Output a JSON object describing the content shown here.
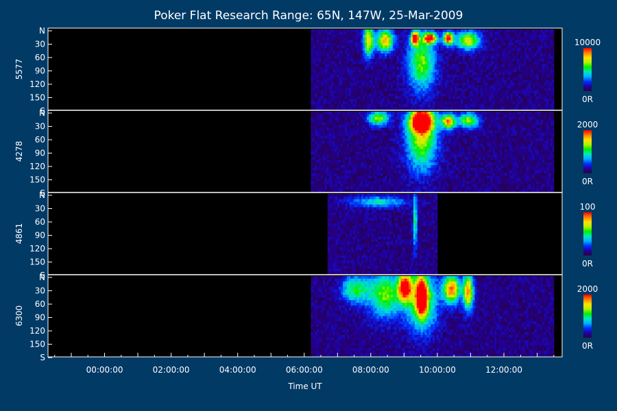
{
  "chart_data": {
    "type": "heatmap",
    "title": "Poker Flat Research Range: 65N, 147W, 25-Mar-2009",
    "xlabel": "Time UT",
    "x_tick_labels": [
      "00:00:00",
      "02:00:00",
      "04:00:00",
      "06:00:00",
      "08:00:00",
      "10:00:00",
      "12:00:00"
    ],
    "y_tick_labels": [
      "N",
      "30",
      "60",
      "90",
      "120",
      "150",
      "S"
    ],
    "colors": {
      "background": "#023a66",
      "plot": "#000000",
      "text": "#ffffff",
      "separator": "#ffffff"
    },
    "colormap": [
      "#2a0040",
      "#2000a0",
      "#0030ff",
      "#00b0ff",
      "#00e8c0",
      "#00f000",
      "#b8f000",
      "#ffe000",
      "#ff8000",
      "#ff0000"
    ],
    "series": [
      {
        "name": "5577",
        "scale_max": "10000",
        "scale_min": "0R",
        "coverage_hours": [
          6.2,
          13.5
        ],
        "events": [
          {
            "t": 7.9,
            "w": 0.15,
            "y": 25,
            "dy": 35,
            "v": 0.7
          },
          {
            "t": 8.4,
            "w": 0.25,
            "y": 25,
            "dy": 25,
            "v": 0.75
          },
          {
            "t": 9.5,
            "w": 0.4,
            "y": 75,
            "dy": 60,
            "v": 0.55
          },
          {
            "t": 9.3,
            "w": 0.12,
            "y": 20,
            "dy": 15,
            "v": 1.0
          },
          {
            "t": 9.75,
            "w": 0.2,
            "y": 20,
            "dy": 12,
            "v": 0.95
          },
          {
            "t": 10.3,
            "w": 0.15,
            "y": 20,
            "dy": 14,
            "v": 1.0
          },
          {
            "t": 10.9,
            "w": 0.35,
            "y": 25,
            "dy": 20,
            "v": 0.65
          }
        ]
      },
      {
        "name": "4278",
        "scale_max": "2000",
        "scale_min": "0R",
        "coverage_hours": [
          6.2,
          13.5
        ],
        "events": [
          {
            "t": 8.2,
            "w": 0.3,
            "y": 15,
            "dy": 15,
            "v": 0.6
          },
          {
            "t": 9.5,
            "w": 0.45,
            "y": 60,
            "dy": 70,
            "v": 0.6
          },
          {
            "t": 9.5,
            "w": 0.35,
            "y": 20,
            "dy": 25,
            "v": 1.0
          },
          {
            "t": 10.3,
            "w": 0.2,
            "y": 22,
            "dy": 16,
            "v": 0.8
          },
          {
            "t": 10.9,
            "w": 0.3,
            "y": 20,
            "dy": 16,
            "v": 0.6
          }
        ]
      },
      {
        "name": "4861",
        "scale_max": "100",
        "scale_min": "0R",
        "coverage_hours": [
          6.7,
          10.0
        ],
        "events": [
          {
            "t": 8.2,
            "w": 0.8,
            "y": 18,
            "dy": 12,
            "v": 0.35
          },
          {
            "t": 9.3,
            "w": 0.06,
            "y": 60,
            "dy": 60,
            "v": 0.45
          }
        ]
      },
      {
        "name": "6300",
        "scale_max": "2000",
        "scale_min": "0R",
        "coverage_hours": [
          6.2,
          13.5
        ],
        "events": [
          {
            "t": 7.5,
            "w": 0.4,
            "y": 30,
            "dy": 30,
            "v": 0.45
          },
          {
            "t": 8.4,
            "w": 0.5,
            "y": 40,
            "dy": 50,
            "v": 0.55
          },
          {
            "t": 9.5,
            "w": 0.45,
            "y": 55,
            "dy": 65,
            "v": 0.6
          },
          {
            "t": 9.0,
            "w": 0.2,
            "y": 25,
            "dy": 30,
            "v": 0.95
          },
          {
            "t": 9.5,
            "w": 0.15,
            "y": 45,
            "dy": 40,
            "v": 1.0
          },
          {
            "t": 10.4,
            "w": 0.25,
            "y": 30,
            "dy": 30,
            "v": 0.85
          },
          {
            "t": 10.9,
            "w": 0.15,
            "y": 35,
            "dy": 40,
            "v": 0.8
          }
        ]
      }
    ]
  }
}
